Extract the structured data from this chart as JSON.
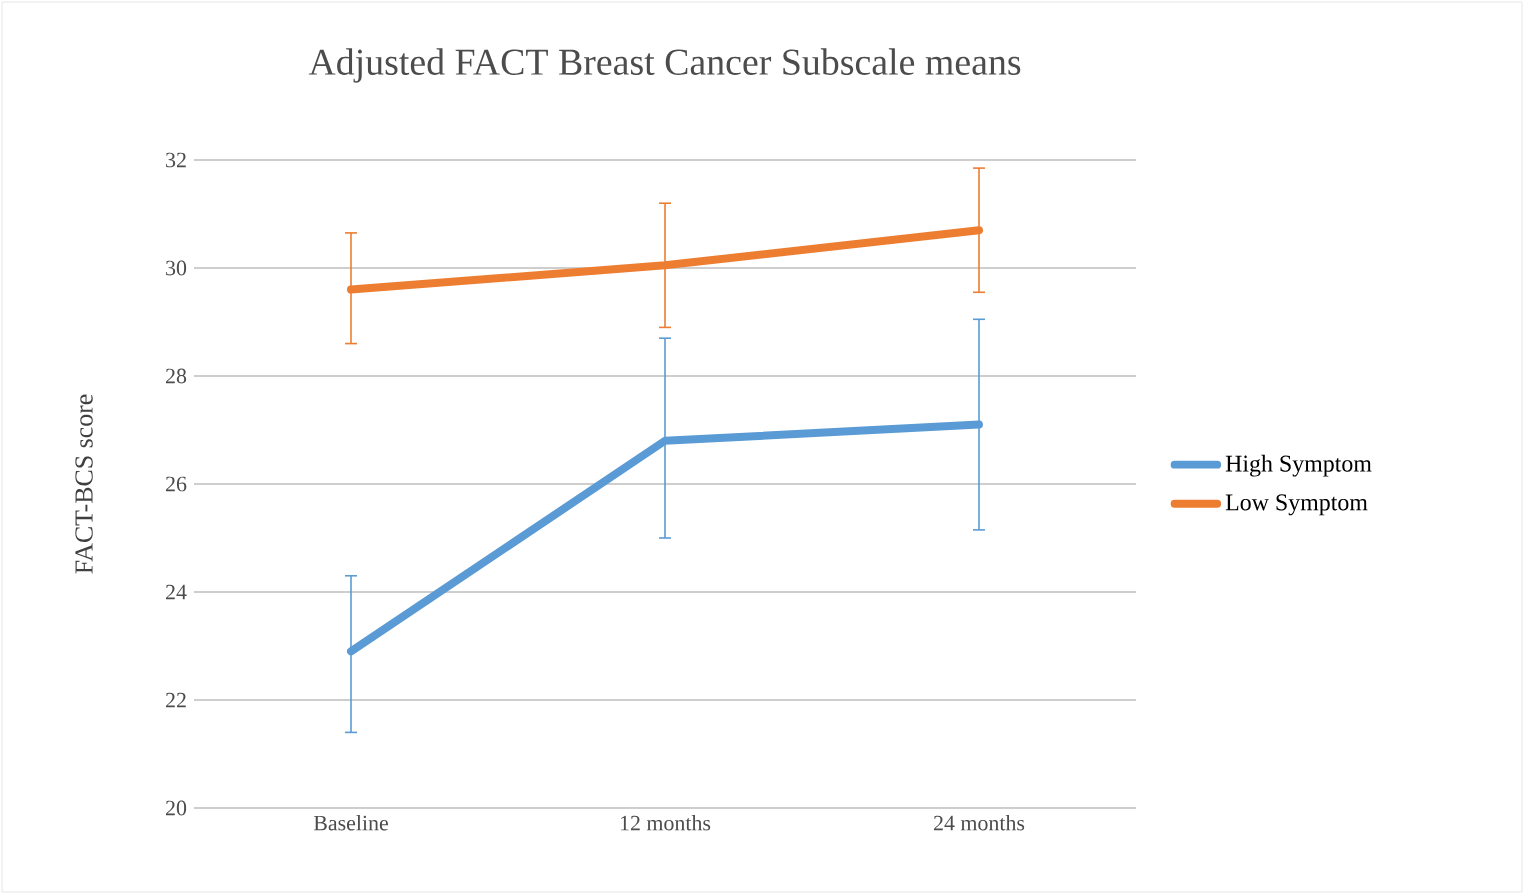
{
  "chart_data": {
    "type": "line",
    "title": "Adjusted FACT Breast Cancer Subscale means",
    "ylabel": "FACT-BCS score",
    "categories": [
      "Baseline",
      "12 months",
      "24 months"
    ],
    "series": [
      {
        "name": "High Symptom",
        "color": "#5b9bd5",
        "values": [
          22.9,
          26.8,
          27.1
        ],
        "errors": [
          [
            21.4,
            24.3
          ],
          [
            25.0,
            28.7
          ],
          [
            25.15,
            29.05
          ]
        ]
      },
      {
        "name": "Low Symptom",
        "color": "#ed7d31",
        "values": [
          29.6,
          30.05,
          30.7
        ],
        "errors": [
          [
            28.6,
            30.65
          ],
          [
            28.9,
            31.2
          ],
          [
            29.55,
            31.85
          ]
        ]
      }
    ],
    "ylim": [
      20,
      32
    ],
    "yticks": [
      20,
      22,
      24,
      26,
      28,
      30,
      32
    ],
    "grid": "y",
    "legend": "right",
    "marker": "none",
    "line_style": "solid"
  }
}
